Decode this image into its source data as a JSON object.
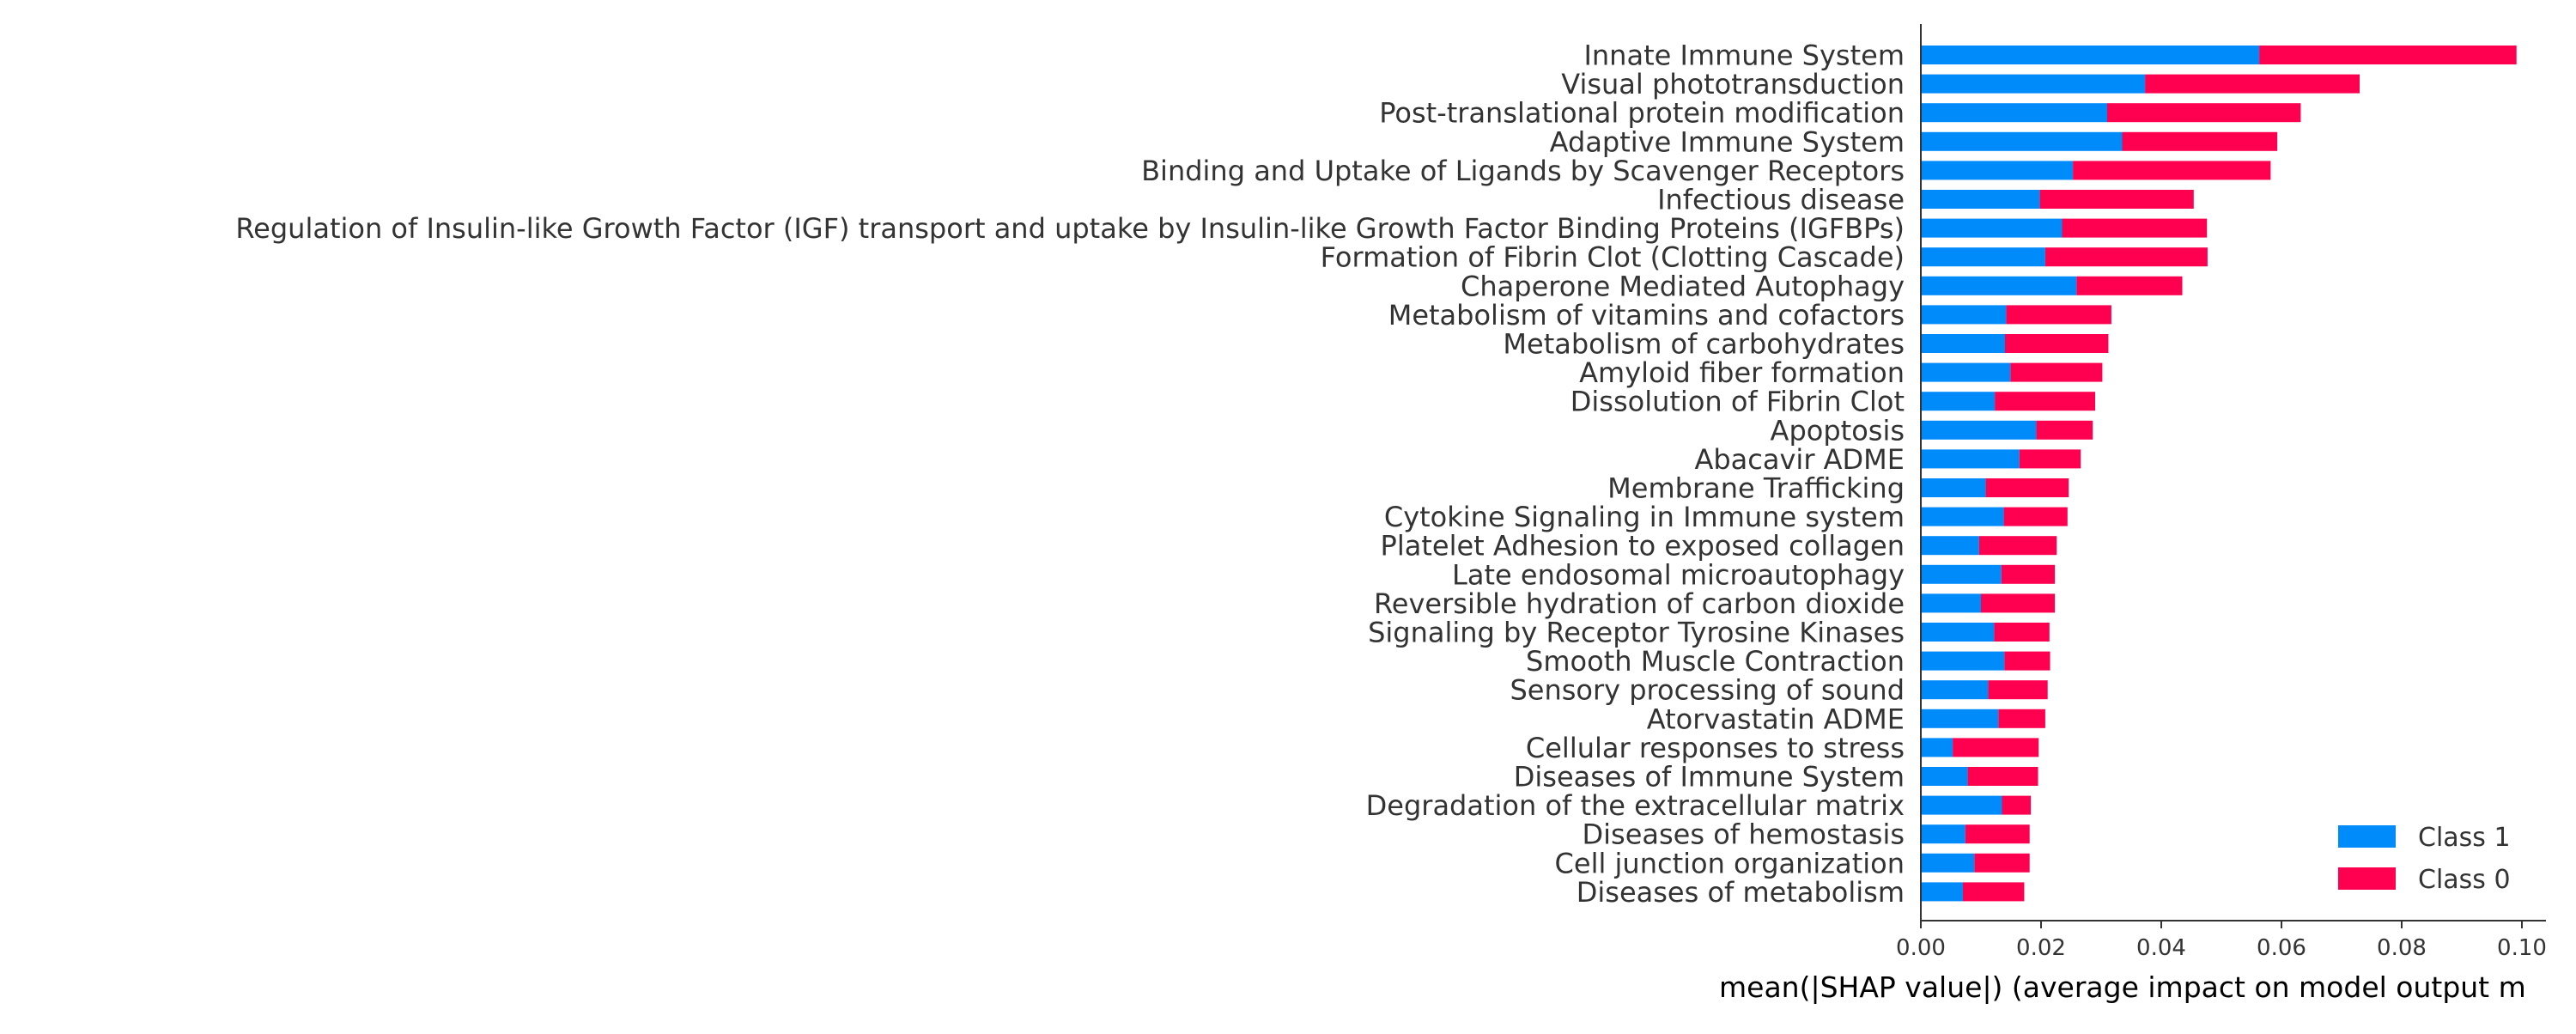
{
  "chart_data": {
    "type": "bar",
    "orientation": "horizontal",
    "stacked": true,
    "categories": [
      "Innate Immune System",
      "Visual phototransduction",
      "Post-translational protein modification",
      "Adaptive Immune System",
      "Binding and Uptake of Ligands by Scavenger Receptors",
      "Infectious disease",
      "Regulation of Insulin-like Growth Factor (IGF) transport and uptake by Insulin-like Growth Factor Binding Proteins (IGFBPs)",
      "Formation of Fibrin Clot (Clotting Cascade)",
      "Chaperone Mediated Autophagy",
      "Metabolism of vitamins and cofactors",
      "Metabolism of carbohydrates",
      "Amyloid fiber formation",
      "Dissolution of Fibrin Clot",
      "Apoptosis",
      "Abacavir ADME",
      "Membrane Trafficking",
      "Cytokine Signaling in Immune system",
      "Platelet Adhesion to exposed collagen",
      "Late endosomal microautophagy",
      "Reversible hydration of carbon dioxide",
      "Signaling by Receptor Tyrosine Kinases",
      "Smooth Muscle Contraction",
      "Sensory processing of sound",
      "Atorvastatin ADME",
      "Cellular responses to stress",
      "Diseases of Immune System",
      "Degradation of the extracellular matrix",
      "Diseases of hemostasis",
      "Cell junction organization",
      "Diseases of metabolism"
    ],
    "series": [
      {
        "name": "Class 1",
        "color": "#008bfb",
        "values": [
          0.0563,
          0.0373,
          0.031,
          0.0335,
          0.0253,
          0.0198,
          0.0235,
          0.0207,
          0.0259,
          0.0142,
          0.014,
          0.0149,
          0.0123,
          0.0192,
          0.0164,
          0.0108,
          0.0138,
          0.0097,
          0.0134,
          0.01,
          0.0122,
          0.0139,
          0.0112,
          0.0129,
          0.0053,
          0.0078,
          0.0135,
          0.0074,
          0.0089,
          0.007
        ]
      },
      {
        "name": "Class 0",
        "color": "#ff0051",
        "values": [
          0.0428,
          0.0357,
          0.0322,
          0.0258,
          0.0329,
          0.0256,
          0.0241,
          0.027,
          0.0176,
          0.0175,
          0.0172,
          0.0153,
          0.0167,
          0.0094,
          0.0102,
          0.0138,
          0.0106,
          0.0129,
          0.0089,
          0.0123,
          0.0092,
          0.0076,
          0.0099,
          0.0078,
          0.0143,
          0.0117,
          0.0048,
          0.0107,
          0.0092,
          0.0102
        ]
      }
    ],
    "xlabel": "mean(|SHAP value|) (average impact on model output m",
    "ylabel": "",
    "xlim": [
      0.0,
      0.104
    ],
    "xticks": [
      "0.00",
      "0.02",
      "0.04",
      "0.06",
      "0.08",
      "0.10"
    ],
    "tick_values": [
      0.0,
      0.02,
      0.04,
      0.06,
      0.08,
      0.1
    ],
    "grid": false,
    "legend_position": "bottom-right"
  }
}
